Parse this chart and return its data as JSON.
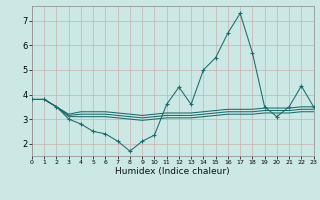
{
  "xlabel": "Humidex (Indice chaleur)",
  "background_color": "#cce8e5",
  "grid_color": "#c8b0b0",
  "line_color": "#1a6b6b",
  "xlim": [
    0,
    23
  ],
  "ylim": [
    1.5,
    7.6
  ],
  "yticks": [
    2,
    3,
    4,
    5,
    6,
    7
  ],
  "xtick_labels": [
    "0",
    "1",
    "2",
    "3",
    "4",
    "5",
    "6",
    "7",
    "8",
    "9",
    "10",
    "11",
    "12",
    "13",
    "14",
    "15",
    "16",
    "17",
    "18",
    "19",
    "20",
    "21",
    "22",
    "23"
  ],
  "main_x": [
    0,
    1,
    2,
    3,
    4,
    5,
    6,
    7,
    8,
    9,
    10,
    11,
    12,
    13,
    14,
    15,
    16,
    17,
    18,
    19,
    20,
    21,
    22,
    23
  ],
  "main_y": [
    3.8,
    3.8,
    3.5,
    3.0,
    2.8,
    2.5,
    2.4,
    2.1,
    1.7,
    2.1,
    2.35,
    3.6,
    4.3,
    3.6,
    5.0,
    5.5,
    6.5,
    7.3,
    5.7,
    3.5,
    3.1,
    3.5,
    4.35,
    3.5
  ],
  "flat1_x": [
    0,
    1,
    2,
    3,
    4,
    5,
    6,
    7,
    8,
    9,
    10,
    11,
    12,
    13,
    14,
    15,
    16,
    17,
    18,
    19,
    20,
    21,
    22,
    23
  ],
  "flat1_y": [
    3.8,
    3.8,
    3.5,
    3.2,
    3.3,
    3.3,
    3.3,
    3.25,
    3.2,
    3.15,
    3.2,
    3.25,
    3.25,
    3.25,
    3.3,
    3.35,
    3.4,
    3.4,
    3.4,
    3.45,
    3.45,
    3.45,
    3.5,
    3.5
  ],
  "flat2_x": [
    0,
    1,
    2,
    3,
    4,
    5,
    6,
    7,
    8,
    9,
    10,
    11,
    12,
    13,
    14,
    15,
    16,
    17,
    18,
    19,
    20,
    21,
    22,
    23
  ],
  "flat2_y": [
    3.8,
    3.8,
    3.5,
    3.15,
    3.2,
    3.2,
    3.2,
    3.15,
    3.1,
    3.05,
    3.1,
    3.15,
    3.15,
    3.15,
    3.2,
    3.25,
    3.3,
    3.3,
    3.3,
    3.35,
    3.35,
    3.35,
    3.4,
    3.4
  ],
  "flat3_x": [
    0,
    1,
    2,
    3,
    4,
    5,
    6,
    7,
    8,
    9,
    10,
    11,
    12,
    13,
    14,
    15,
    16,
    17,
    18,
    19,
    20,
    21,
    22,
    23
  ],
  "flat3_y": [
    3.8,
    3.8,
    3.5,
    3.1,
    3.1,
    3.1,
    3.1,
    3.05,
    3.0,
    2.95,
    3.0,
    3.05,
    3.05,
    3.05,
    3.1,
    3.15,
    3.2,
    3.2,
    3.2,
    3.25,
    3.25,
    3.25,
    3.3,
    3.3
  ]
}
